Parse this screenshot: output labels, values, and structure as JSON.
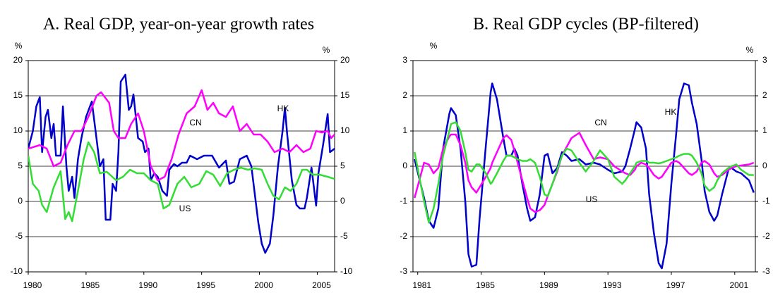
{
  "chart_data": [
    {
      "type": "line",
      "title": "A. Real GDP, year-on-year growth rates",
      "y_unit": "%",
      "xlim": [
        1980,
        2006.5
      ],
      "xticks": [
        1980,
        1985,
        1990,
        1995,
        2000,
        2005
      ],
      "ylim": [
        -10,
        20
      ],
      "yticks": [
        -10,
        -5,
        0,
        5,
        10,
        15,
        20
      ],
      "y2lim": [
        -10,
        20
      ],
      "y2ticks": [
        -10,
        -5,
        0,
        5,
        10,
        15,
        20
      ],
      "grid": true,
      "series": [
        {
          "name": "HK",
          "color": "#0000cc",
          "x": [
            1980.0,
            1980.4,
            1980.7,
            1981.0,
            1981.2,
            1981.5,
            1981.7,
            1982.0,
            1982.2,
            1982.4,
            1982.8,
            1983.0,
            1983.3,
            1983.5,
            1983.8,
            1984.0,
            1984.3,
            1984.6,
            1985.0,
            1985.5,
            1985.9,
            1986.2,
            1986.5,
            1986.7,
            1987.1,
            1987.3,
            1987.6,
            1987.8,
            1988.0,
            1988.4,
            1988.7,
            1988.9,
            1989.1,
            1989.5,
            1989.9,
            1990.1,
            1990.4,
            1990.6,
            1990.9,
            1991.2,
            1991.6,
            1992.0,
            1992.2,
            1992.6,
            1992.9,
            1993.3,
            1993.7,
            1994.0,
            1994.6,
            1995.2,
            1995.9,
            1996.5,
            1997.1,
            1997.4,
            1997.8,
            1998.3,
            1998.9,
            1999.3,
            1999.9,
            2000.2,
            2000.5,
            2000.9,
            2001.2,
            2001.6,
            2002.0,
            2002.2,
            2002.4,
            2002.8,
            2003.2,
            2003.5,
            2003.9,
            2004.1,
            2004.5,
            2004.9,
            2005.1,
            2005.5,
            2005.9,
            2006.1,
            2006.5
          ],
          "values": [
            7.5,
            10,
            13.5,
            14.8,
            7,
            12,
            13,
            9,
            11,
            6.5,
            6.5,
            13.5,
            5,
            1.5,
            3.5,
            0.5,
            6,
            9,
            12,
            14.2,
            9,
            5,
            6,
            -2.6,
            -2.6,
            2.5,
            1.5,
            7,
            17,
            18,
            13,
            13.5,
            15.2,
            9,
            8.5,
            7,
            7.5,
            3,
            4,
            3.5,
            1.5,
            0.8,
            4.5,
            5.3,
            5,
            5.5,
            5.5,
            6.5,
            6,
            6.5,
            6.5,
            4.8,
            5.8,
            2.5,
            2.8,
            6,
            6.5,
            5,
            -3,
            -6,
            -7.3,
            -6,
            -2,
            5,
            10,
            13.3,
            9.5,
            3,
            -0.5,
            -1,
            -1,
            0.5,
            4.8,
            -0.6,
            4,
            8,
            12.4,
            7,
            7.5
          ]
        },
        {
          "name": "CN",
          "color": "#ff00ff",
          "x": [
            1980.0,
            1981.0,
            1981.6,
            1982.2,
            1982.8,
            1983.4,
            1984.0,
            1984.6,
            1985.2,
            1985.9,
            1986.3,
            1987.0,
            1987.4,
            1987.8,
            1988.4,
            1988.9,
            1989.5,
            1990.0,
            1990.6,
            1991.2,
            1991.8,
            1992.4,
            1993.0,
            1993.7,
            1994.4,
            1995.0,
            1995.5,
            1996.0,
            1996.5,
            1997.1,
            1997.7,
            1998.3,
            1998.9,
            1999.5,
            2000.1,
            2000.7,
            2001.3,
            2002.0,
            2002.6,
            2003.2,
            2003.8,
            2004.4,
            2004.9,
            2005.4,
            2005.9,
            2006.2,
            2006.5
          ],
          "values": [
            7.5,
            8,
            7.5,
            5,
            5.5,
            8,
            10,
            10,
            12,
            15,
            15.5,
            14,
            10,
            9,
            9,
            11,
            12.5,
            10,
            5,
            3,
            3.5,
            6,
            9.5,
            12.5,
            13.5,
            15.8,
            13,
            14,
            12.5,
            12,
            13.5,
            10,
            11,
            9.5,
            9.5,
            8.5,
            7,
            7.5,
            7,
            8,
            7,
            7.5,
            10,
            9.8,
            10,
            9,
            9.5
          ]
        },
        {
          "name": "US",
          "color": "#33dd33",
          "x": [
            1980.0,
            1980.4,
            1980.9,
            1981.2,
            1981.6,
            1982.2,
            1982.8,
            1983.2,
            1983.5,
            1983.8,
            1984.3,
            1984.8,
            1985.2,
            1985.7,
            1986.2,
            1986.8,
            1987.6,
            1988.2,
            1988.8,
            1989.4,
            1990.0,
            1990.6,
            1991.2,
            1991.7,
            1992.2,
            1992.9,
            1993.5,
            1994.1,
            1994.8,
            1995.4,
            1996.0,
            1996.6,
            1997.2,
            1997.8,
            1998.4,
            1999.0,
            1999.6,
            2000.2,
            2000.7,
            2001.2,
            2001.7,
            2002.2,
            2002.7,
            2003.2,
            2003.7,
            2004.1,
            2004.6,
            2005.2,
            2005.9,
            2006.5
          ],
          "values": [
            6.5,
            2.5,
            1.5,
            -0.5,
            -1.5,
            2,
            4.3,
            -2.5,
            -1.5,
            -2.8,
            1.5,
            6,
            8.4,
            7,
            4,
            4.2,
            3,
            3.5,
            4.5,
            4,
            4,
            3,
            2.5,
            -1,
            -0.5,
            2.5,
            3.5,
            2,
            2.5,
            4.3,
            3.8,
            2.2,
            4,
            4.5,
            4.8,
            4.5,
            4.7,
            4.5,
            2.5,
            0.8,
            0.3,
            2,
            1.5,
            2.5,
            4.5,
            4.5,
            3.8,
            3.8,
            3.5,
            3.2
          ]
        }
      ]
    },
    {
      "type": "line",
      "title": "B. Real GDP cycles (BP-filtered)",
      "y_unit": "%",
      "xlim": [
        1980.7,
        2002.3
      ],
      "xticks": [
        1981,
        1985,
        1989,
        1993,
        1997,
        2001
      ],
      "ylim": [
        -3,
        3
      ],
      "yticks": [
        -3,
        -2,
        -1,
        0,
        1,
        2,
        3
      ],
      "y2lim": [
        -3,
        3
      ],
      "y2ticks": [
        -3,
        -2,
        -1,
        0,
        1,
        2,
        3
      ],
      "grid": true,
      "x": [
        1980.8,
        1981.4,
        1981.7,
        1982.0,
        1982.3,
        1982.6,
        1983.0,
        1983.1,
        1983.4,
        1983.7,
        1984.0,
        1984.2,
        1984.4,
        1984.7,
        1984.9,
        1985.3,
        1985.6,
        1985.7,
        1986.0,
        1986.4,
        1986.6,
        1986.9,
        1987.1,
        1987.3,
        1987.6,
        1987.9,
        1988.1,
        1988.4,
        1988.7,
        1989.0,
        1989.2,
        1989.5,
        1989.8,
        1990.1,
        1990.4,
        1990.7,
        1991.2,
        1991.6,
        1992.1,
        1992.5,
        1993.0,
        1993.4,
        1993.9,
        1994.1,
        1994.4,
        1994.7,
        1994.8,
        1995.1,
        1995.4,
        1995.6,
        1995.9,
        1996.2,
        1996.4,
        1996.7,
        1997.0,
        1997.3,
        1997.5,
        1997.8,
        1998.1,
        1998.3,
        1998.6,
        1998.9,
        1999.1,
        1999.4,
        1999.7,
        1999.9,
        2000.2,
        2000.6,
        2000.8,
        2001.1,
        2001.4,
        2001.9,
        2002.2
      ],
      "series": [
        {
          "name": "HK",
          "color": "#0000cc",
          "values": [
            0.2,
            -0.9,
            -1.55,
            -1.75,
            -1.2,
            0.5,
            1.5,
            1.65,
            1.45,
            0.5,
            -1,
            -2.5,
            -2.85,
            -2.8,
            -1.5,
            0.6,
            2.1,
            2.35,
            1.9,
            0.8,
            0.3,
            0.3,
            0.5,
            0.3,
            -0.5,
            -1.2,
            -1.55,
            -1.45,
            -0.8,
            0.3,
            0.35,
            -0.2,
            -0.05,
            0.4,
            0.3,
            0.15,
            0.2,
            0.05,
            0.1,
            0.05,
            -0.1,
            -0.2,
            -0.15,
            0,
            0.5,
            1.05,
            1.25,
            1.1,
            0.5,
            -0.8,
            -1.9,
            -2.75,
            -2.9,
            -2.2,
            -0.5,
            0.9,
            1.9,
            2.35,
            2.3,
            1.8,
            1.2,
            0.2,
            -0.7,
            -1.3,
            -1.55,
            -1.4,
            -0.8,
            -0.1,
            -0.05,
            -0.15,
            -0.2,
            -0.4,
            -0.75
          ]
        },
        {
          "name": "CN",
          "color": "#ff00ff",
          "values": [
            -0.9,
            0.1,
            0.05,
            -0.2,
            -0.05,
            0.5,
            0.85,
            0.9,
            0.9,
            0.6,
            0.1,
            -0.4,
            -0.6,
            -0.75,
            -0.6,
            -0.3,
            -0.05,
            0.1,
            0.4,
            0.8,
            0.88,
            0.75,
            0.45,
            0.1,
            -0.4,
            -0.9,
            -1.2,
            -1.3,
            -1.25,
            -1.1,
            -0.85,
            -0.5,
            -0.15,
            0.3,
            0.55,
            0.8,
            0.95,
            0.6,
            0.2,
            0.25,
            0.2,
            0,
            -0.15,
            -0.2,
            -0.25,
            -0.1,
            0,
            0.1,
            0.05,
            -0.05,
            -0.25,
            -0.35,
            -0.3,
            -0.1,
            0.1,
            0.15,
            0.1,
            -0.05,
            -0.2,
            -0.25,
            -0.15,
            0.1,
            0.15,
            0.05,
            -0.2,
            -0.3,
            -0.25,
            -0.1,
            -0.05,
            0,
            0.02,
            0.05,
            0.1
          ]
        },
        {
          "name": "US",
          "color": "#33dd33",
          "values": [
            0.4,
            -1,
            -1.6,
            -1.2,
            -0.5,
            0.3,
            1,
            1.2,
            1.25,
            1,
            0.4,
            -0.1,
            -0.15,
            0.05,
            0.05,
            -0.2,
            -0.5,
            -0.45,
            -0.2,
            0.15,
            0.3,
            0.3,
            0.25,
            0.2,
            0.15,
            0.15,
            0.2,
            0.1,
            -0.3,
            -0.8,
            -0.85,
            -0.5,
            -0.1,
            0.3,
            0.5,
            0.45,
            0.1,
            -0.15,
            0.15,
            0.45,
            0.2,
            -0.3,
            -0.5,
            -0.4,
            -0.2,
            0,
            0.1,
            0.15,
            0.15,
            0.1,
            0.1,
            0.08,
            0.1,
            0.15,
            0.2,
            0.25,
            0.3,
            0.35,
            0.35,
            0.3,
            0.1,
            -0.2,
            -0.55,
            -0.7,
            -0.6,
            -0.4,
            -0.2,
            -0.05,
            0,
            0.05,
            -0.1,
            -0.25,
            -0.25
          ]
        }
      ]
    }
  ]
}
